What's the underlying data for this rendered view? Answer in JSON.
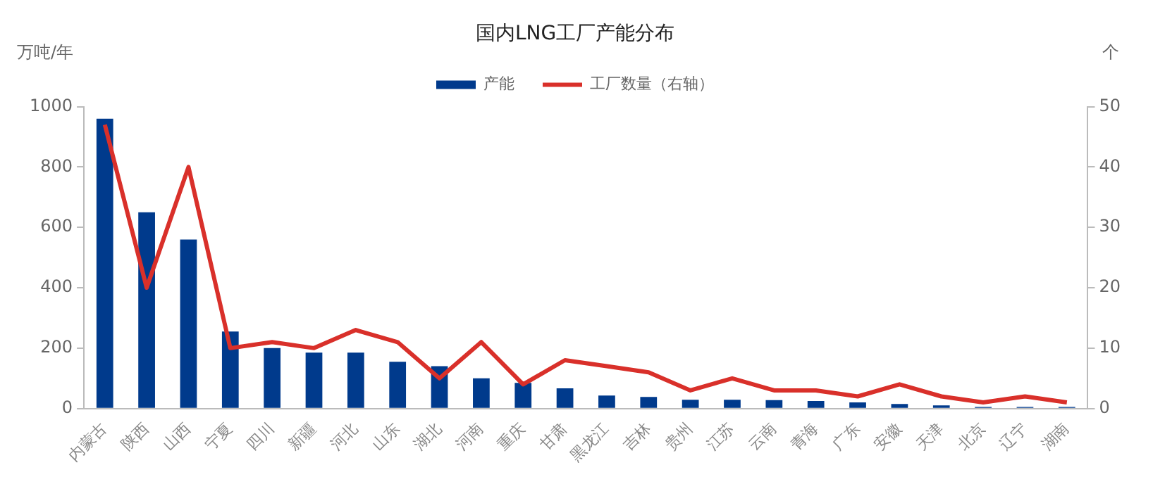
{
  "chart_data": {
    "type": "bar",
    "title": "国内LNG工厂产能分布",
    "ylabel": "万吨/年",
    "y2label": "个",
    "categories": [
      "内蒙古",
      "陕西",
      "山西",
      "宁夏",
      "四川",
      "新疆",
      "河北",
      "山东",
      "湖北",
      "河南",
      "重庆",
      "甘肃",
      "黑龙江",
      "吉林",
      "贵州",
      "江苏",
      "云南",
      "青海",
      "广东",
      "安徽",
      "天津",
      "北京",
      "辽宁",
      "湖南"
    ],
    "series": [
      {
        "name": "产能",
        "color": "#003a8c",
        "values": [
          960,
          650,
          560,
          255,
          200,
          185,
          185,
          155,
          140,
          100,
          85,
          67,
          43,
          38,
          29,
          29,
          28,
          25,
          20,
          15,
          10,
          5,
          5,
          5
        ]
      },
      {
        "name": "工厂数量（右轴）",
        "type": "line",
        "axis": "y2",
        "color": "#d9302a",
        "values": [
          47,
          20,
          40,
          10,
          11,
          10,
          13,
          11,
          5,
          11,
          4,
          8,
          7,
          6,
          3,
          5,
          3,
          3,
          2,
          4,
          2,
          1,
          2,
          1
        ]
      }
    ],
    "ylim": [
      0,
      1000
    ],
    "yticks": [
      0,
      200,
      400,
      600,
      800,
      1000
    ],
    "y2lim": [
      0,
      50
    ],
    "y2ticks": [
      0,
      10,
      20,
      30,
      40,
      50
    ],
    "grid": false,
    "legend": "top",
    "marker": "none",
    "line_style": "solid"
  }
}
